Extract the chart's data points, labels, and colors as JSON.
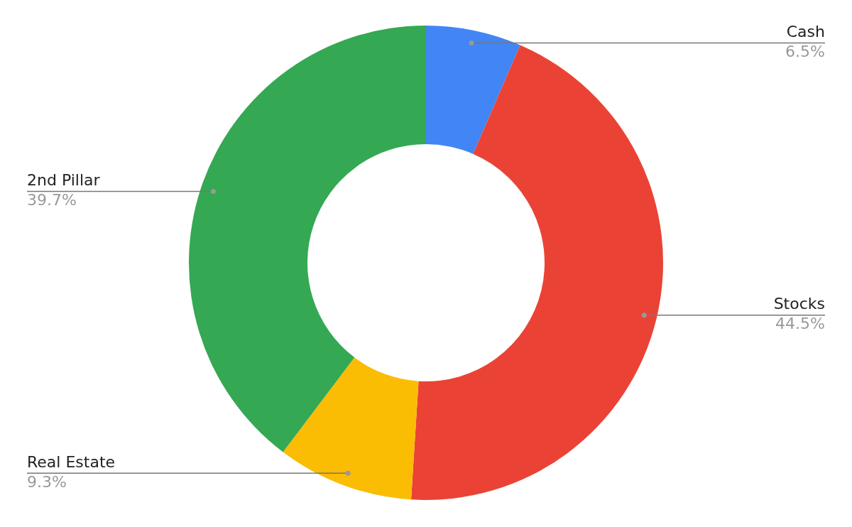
{
  "chart_data": {
    "type": "donut",
    "categories": [
      "Cash",
      "Stocks",
      "Real Estate",
      "2nd Pillar"
    ],
    "values": [
      6.5,
      44.5,
      9.3,
      39.7
    ],
    "value_labels": [
      "6.5%",
      "44.5%",
      "9.3%",
      "39.7%"
    ],
    "colors": [
      "#4285f4",
      "#ea4335",
      "#fbbc04",
      "#34a853"
    ],
    "legend": false
  }
}
